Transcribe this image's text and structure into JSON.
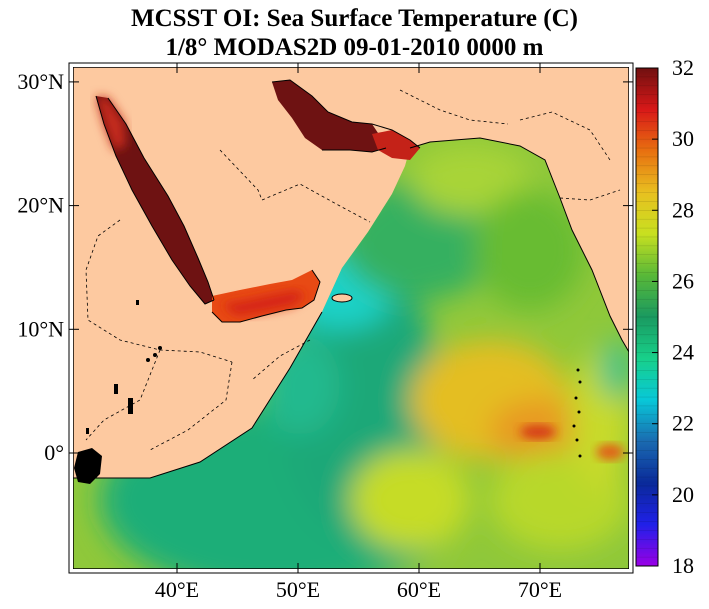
{
  "title": {
    "line1": "MCSST OI:  Sea Surface Temperature (C)",
    "line2": "1/8° MODAS2D 09-01-2010 0000 m"
  },
  "map": {
    "lat_ticks": [
      {
        "value": 30,
        "label": "30°N"
      },
      {
        "value": 20,
        "label": "20°N"
      },
      {
        "value": 10,
        "label": "10°N"
      },
      {
        "value": 0,
        "label": "0°"
      }
    ],
    "lon_ticks": [
      {
        "value": 40,
        "label": "40°E"
      },
      {
        "value": 50,
        "label": "50°E"
      },
      {
        "value": 60,
        "label": "60°E"
      },
      {
        "value": 70,
        "label": "70°E"
      }
    ],
    "land_color": "#fdc9a0",
    "background": "#ffffff"
  },
  "colorbar": {
    "min": 18,
    "max": 32,
    "tick_labels": [
      "32",
      "30",
      "28",
      "26",
      "24",
      "22",
      "20",
      "18"
    ],
    "colors_low_to_high": [
      "#9a00e6",
      "#2020e8",
      "#0a2a9a",
      "#1a6ab0",
      "#08c8d8",
      "#18d08a",
      "#1a9a60",
      "#58b838",
      "#c8e020",
      "#e8c020",
      "#e87010",
      "#d81818",
      "#701010"
    ]
  }
}
